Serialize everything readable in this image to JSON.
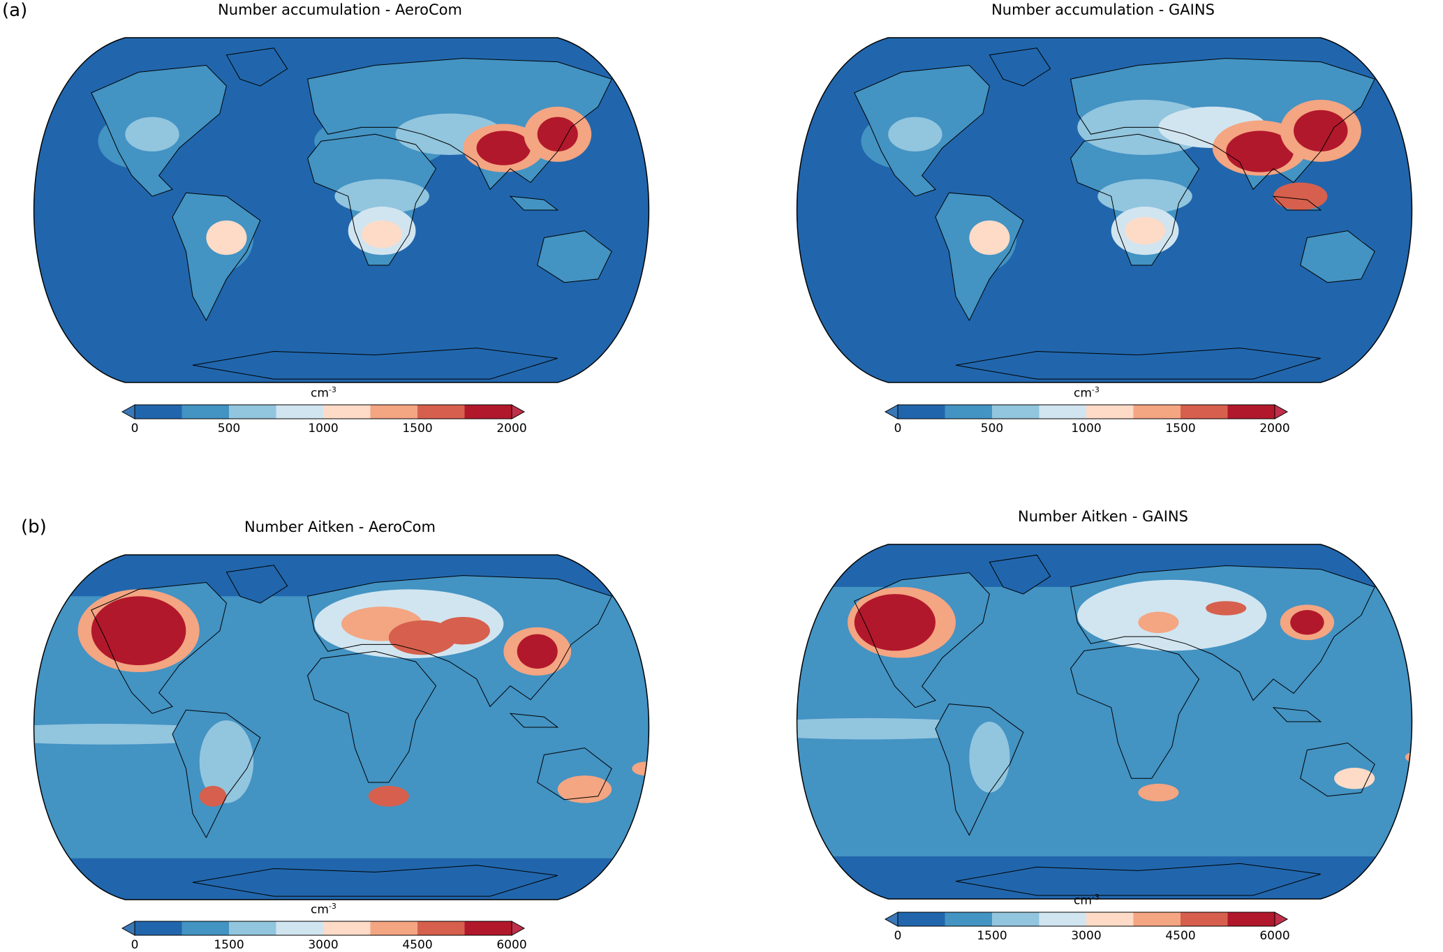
{
  "figure": {
    "panel_labels": [
      "(a)",
      "(b)"
    ],
    "panels": [
      {
        "title": "Number accumulation - AeroCom",
        "colorbar": {
          "unit": "cm",
          "unit_exp": "-3",
          "ticks": [
            "0",
            "500",
            "1000",
            "1500",
            "2000"
          ]
        }
      },
      {
        "title": "Number accumulation  - GAINS",
        "colorbar": {
          "unit": "cm",
          "unit_exp": "-3",
          "ticks": [
            "0",
            "500",
            "1000",
            "1500",
            "2000"
          ]
        }
      },
      {
        "title": "Number Aitken - AeroCom",
        "colorbar": {
          "unit": "cm",
          "unit_exp": "-3",
          "ticks": [
            "0",
            "1500",
            "3000",
            "4500",
            "6000"
          ]
        }
      },
      {
        "title": "Number Aitken - GAINS",
        "colorbar": {
          "unit": "cm",
          "unit_exp": "-3",
          "ticks": [
            "0",
            "1500",
            "3000",
            "4500",
            "6000"
          ]
        }
      }
    ],
    "colormap": [
      "#2166ac",
      "#4393c3",
      "#92c5de",
      "#d1e5f0",
      "#fddbc7",
      "#f4a582",
      "#d6604d",
      "#b2182b"
    ]
  },
  "chart_data": [
    {
      "type": "heatmap",
      "title": "Number accumulation - AeroCom",
      "projection": "robinson",
      "colorbar_range": [
        0,
        2000
      ],
      "colorbar_ticks": [
        0,
        500,
        1000,
        1500,
        2000
      ],
      "unit": "cm-3",
      "extend": "both"
    },
    {
      "type": "heatmap",
      "title": "Number accumulation  - GAINS",
      "projection": "robinson",
      "colorbar_range": [
        0,
        2000
      ],
      "colorbar_ticks": [
        0,
        500,
        1000,
        1500,
        2000
      ],
      "unit": "cm-3",
      "extend": "both"
    },
    {
      "type": "heatmap",
      "title": "Number Aitken - AeroCom",
      "projection": "robinson",
      "colorbar_range": [
        0,
        6000
      ],
      "colorbar_ticks": [
        0,
        1500,
        3000,
        4500,
        6000
      ],
      "unit": "cm-3",
      "extend": "both"
    },
    {
      "type": "heatmap",
      "title": "Number Aitken - GAINS",
      "projection": "robinson",
      "colorbar_range": [
        0,
        6000
      ],
      "colorbar_ticks": [
        0,
        1500,
        3000,
        4500,
        6000
      ],
      "unit": "cm-3",
      "extend": "both"
    }
  ]
}
